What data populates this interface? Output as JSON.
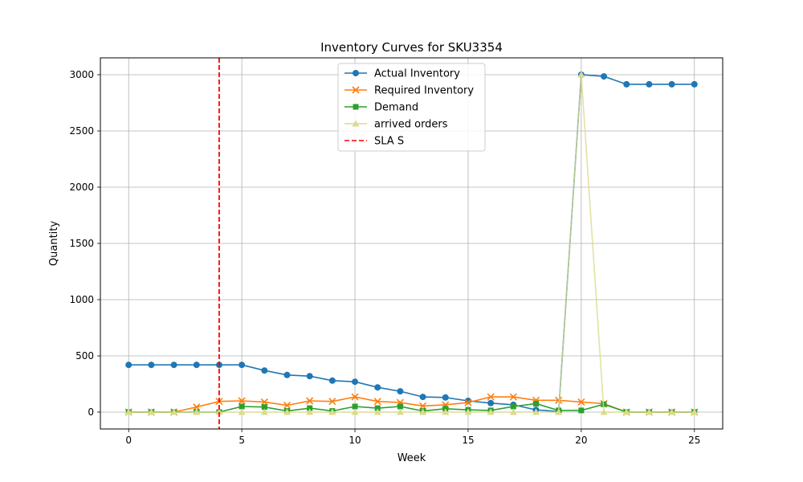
{
  "chart_data": {
    "type": "line",
    "title": "Inventory Curves for SKU3354",
    "xlabel": "Week",
    "ylabel": "Quantity",
    "xlim": [
      -1.25,
      26.25
    ],
    "ylim": [
      -150,
      3150
    ],
    "xticks": [
      0,
      5,
      10,
      15,
      20,
      25
    ],
    "yticks": [
      0,
      500,
      1000,
      1500,
      2000,
      2500,
      3000
    ],
    "grid": true,
    "legend_position": "upper-center",
    "x": [
      0,
      1,
      2,
      3,
      4,
      5,
      6,
      7,
      8,
      9,
      10,
      11,
      12,
      13,
      14,
      15,
      16,
      17,
      18,
      19,
      20,
      21,
      22,
      23,
      24,
      25
    ],
    "series": [
      {
        "name": "Actual Inventory",
        "color": "#1f77b4",
        "marker": "circle",
        "linestyle": "solid",
        "values": [
          420,
          420,
          420,
          420,
          420,
          420,
          370,
          330,
          320,
          280,
          270,
          220,
          185,
          135,
          130,
          100,
          80,
          65,
          20,
          5,
          3000,
          2985,
          2915,
          2915,
          2915,
          2915
        ]
      },
      {
        "name": "Required Inventory",
        "color": "#ff7f0e",
        "marker": "x",
        "linestyle": "solid",
        "values": [
          0,
          0,
          0,
          45,
          95,
          100,
          90,
          60,
          100,
          95,
          135,
          95,
          85,
          55,
          65,
          85,
          135,
          135,
          105,
          105,
          90,
          75,
          0,
          0,
          0,
          0
        ]
      },
      {
        "name": "Demand",
        "color": "#2ca02c",
        "marker": "square",
        "linestyle": "solid",
        "values": [
          0,
          0,
          0,
          0,
          0,
          50,
          45,
          10,
          35,
          10,
          50,
          35,
          50,
          10,
          30,
          20,
          15,
          50,
          75,
          15,
          15,
          70,
          0,
          0,
          0,
          0
        ]
      },
      {
        "name": "arrived orders",
        "color": "#dbdb8d",
        "marker": "triangle",
        "linestyle": "solid",
        "values": [
          0,
          0,
          0,
          0,
          0,
          0,
          0,
          0,
          0,
          0,
          0,
          0,
          0,
          0,
          0,
          0,
          0,
          0,
          0,
          0,
          3000,
          0,
          0,
          0,
          0,
          0
        ]
      }
    ],
    "vlines": [
      {
        "name": "SLA S",
        "x": 4,
        "color": "#ff0000",
        "linestyle": "dashed"
      }
    ]
  }
}
